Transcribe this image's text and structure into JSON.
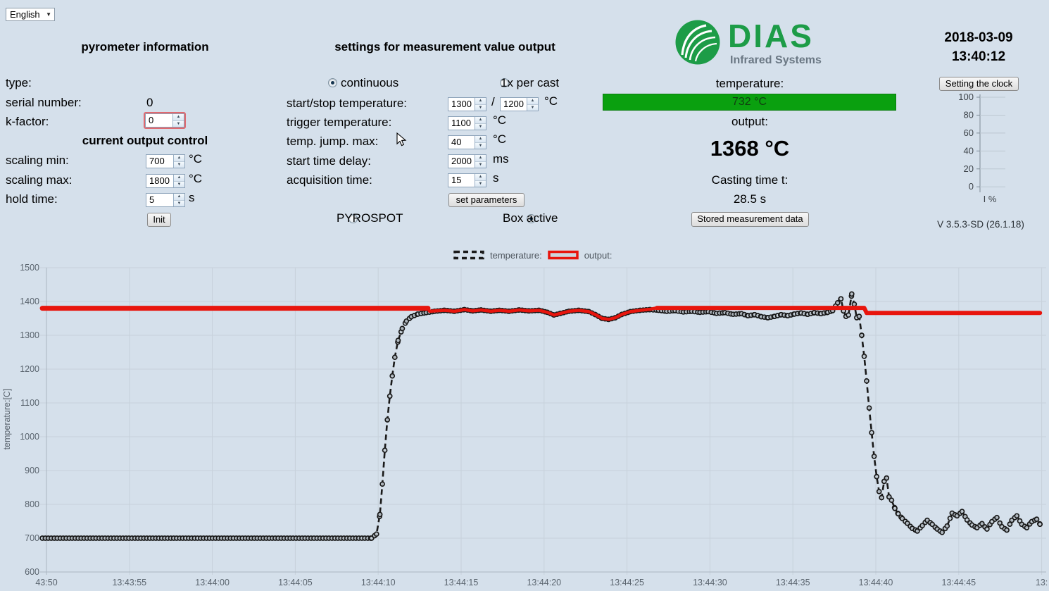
{
  "language_selector": {
    "value": "English"
  },
  "icons": {
    "dropdown_arrow": "▼",
    "spinner_up": "▲",
    "spinner_down": "▼"
  },
  "pyrometer_info": {
    "title": "pyrometer information",
    "type_label": "type:",
    "type_value": "",
    "serial_label": "serial number:",
    "serial_value": "0",
    "kfactor_label": "k-factor:",
    "kfactor_value": "0"
  },
  "output_control": {
    "title": "current output control",
    "scaling_min_label": "scaling min:",
    "scaling_min_value": "700",
    "scaling_min_unit": "°C",
    "scaling_max_label": "scaling max:",
    "scaling_max_value": "1800",
    "scaling_max_unit": "°C",
    "hold_time_label": "hold time:",
    "hold_time_value": "5",
    "hold_time_unit": "s",
    "init_button": "Init"
  },
  "settings": {
    "title": "settings for measurement value output",
    "continuous_label": "continuous",
    "continuous_selected": true,
    "per_cast_label": "1x per cast",
    "per_cast_selected": false,
    "start_stop_label": "start/stop temperature:",
    "start_temp_value": "1300",
    "slash": "/",
    "stop_temp_value": "1200",
    "start_stop_unit": "°C",
    "trigger_label": "trigger temperature:",
    "trigger_value": "1100",
    "trigger_unit": "°C",
    "jump_label": "temp. jump. max:",
    "jump_value": "40",
    "jump_unit": "°C",
    "delay_label": "start time delay:",
    "delay_value": "2000",
    "delay_unit": "ms",
    "acquisition_label": "acquisition time:",
    "acquisition_value": "15",
    "acquisition_unit": "s",
    "set_parameters_button": "set parameters",
    "pyrospot_label": "PYROSPOT",
    "pyrospot_selected": false,
    "box_active_label": "Box active",
    "box_active_selected": true
  },
  "measurement": {
    "brand": "DIAS",
    "brand_subtitle": "Infrared Systems",
    "temperature_label": "temperature:",
    "temperature_value": "732 °C",
    "temperature_bar_color": "#0aa00f",
    "output_label": "output:",
    "output_value": "1368 °C",
    "casting_time_label": "Casting time t:",
    "casting_time_value": "28.5 s",
    "stored_data_button": "Stored measurement data"
  },
  "clock": {
    "date": "2018-03-09",
    "time": "13:40:12",
    "set_clock_button": "Setting the clock",
    "version": "V 3.5.3-SD (26.1.18)"
  },
  "gauge": {
    "ticks": [
      100,
      80,
      60,
      40,
      20,
      0
    ],
    "unit_label": "I %"
  },
  "legend": {
    "temperature_label": "temperature:",
    "output_label": "output:"
  },
  "chart_data": {
    "type": "line",
    "ylabel": "temperature:[C]",
    "ylim": [
      600,
      1500
    ],
    "yticks": [
      600,
      700,
      800,
      900,
      1000,
      1100,
      1200,
      1300,
      1400,
      1500
    ],
    "x_axis_note": "t = seconds after 13:43:50",
    "xlim": [
      -0.3,
      60.3
    ],
    "grid": true,
    "legend_position": "top-center",
    "xticks": [
      {
        "t": 0,
        "label": "43:50"
      },
      {
        "t": 5,
        "label": "13:43:55"
      },
      {
        "t": 10,
        "label": "13:44:00"
      },
      {
        "t": 15,
        "label": "13:44:05"
      },
      {
        "t": 20,
        "label": "13:44:10"
      },
      {
        "t": 25,
        "label": "13:44:15"
      },
      {
        "t": 30,
        "label": "13:44:20"
      },
      {
        "t": 35,
        "label": "13:44:25"
      },
      {
        "t": 40,
        "label": "13:44:30"
      },
      {
        "t": 45,
        "label": "13:44:35"
      },
      {
        "t": 50,
        "label": "13:44:40"
      },
      {
        "t": 55,
        "label": "13:44:45"
      },
      {
        "t": 60,
        "label": "13:"
      }
    ],
    "series": [
      {
        "name": "temperature",
        "color": "#1a1a1a",
        "style": "dashed-line-with-circle-markers",
        "points": [
          [
            -0.25,
            700
          ],
          [
            19.6,
            700
          ],
          [
            19.9,
            712
          ],
          [
            20.1,
            770
          ],
          [
            20.25,
            860
          ],
          [
            20.4,
            960
          ],
          [
            20.55,
            1050
          ],
          [
            20.7,
            1120
          ],
          [
            20.85,
            1180
          ],
          [
            21.0,
            1235
          ],
          [
            21.2,
            1285
          ],
          [
            21.45,
            1320
          ],
          [
            21.7,
            1342
          ],
          [
            22.0,
            1355
          ],
          [
            22.4,
            1363
          ],
          [
            22.9,
            1367
          ],
          [
            23.4,
            1371
          ],
          [
            24.0,
            1374
          ],
          [
            24.6,
            1371
          ],
          [
            25.2,
            1376
          ],
          [
            25.7,
            1372
          ],
          [
            26.2,
            1375
          ],
          [
            26.8,
            1371
          ],
          [
            27.3,
            1374
          ],
          [
            27.9,
            1371
          ],
          [
            28.5,
            1375
          ],
          [
            29.1,
            1372
          ],
          [
            29.7,
            1374
          ],
          [
            30.2,
            1368
          ],
          [
            30.6,
            1360
          ],
          [
            31.0,
            1365
          ],
          [
            31.5,
            1371
          ],
          [
            32.1,
            1374
          ],
          [
            32.7,
            1370
          ],
          [
            33.1,
            1361
          ],
          [
            33.5,
            1350
          ],
          [
            33.9,
            1347
          ],
          [
            34.3,
            1352
          ],
          [
            34.7,
            1362
          ],
          [
            35.2,
            1370
          ],
          [
            35.8,
            1374
          ],
          [
            36.4,
            1376
          ],
          [
            36.9,
            1374
          ],
          [
            37.4,
            1371
          ],
          [
            37.9,
            1373
          ],
          [
            38.4,
            1369
          ],
          [
            38.9,
            1371
          ],
          [
            39.4,
            1368
          ],
          [
            39.9,
            1370
          ],
          [
            40.4,
            1365
          ],
          [
            40.9,
            1367
          ],
          [
            41.4,
            1362
          ],
          [
            41.9,
            1364
          ],
          [
            42.3,
            1358
          ],
          [
            42.7,
            1361
          ],
          [
            43.1,
            1355
          ],
          [
            43.5,
            1352
          ],
          [
            43.9,
            1356
          ],
          [
            44.3,
            1361
          ],
          [
            44.7,
            1358
          ],
          [
            45.1,
            1363
          ],
          [
            45.5,
            1366
          ],
          [
            45.9,
            1362
          ],
          [
            46.3,
            1367
          ],
          [
            46.7,
            1364
          ],
          [
            47.1,
            1368
          ],
          [
            47.4,
            1373
          ],
          [
            47.7,
            1396
          ],
          [
            47.9,
            1408
          ],
          [
            48.05,
            1372
          ],
          [
            48.2,
            1356
          ],
          [
            48.35,
            1360
          ],
          [
            48.55,
            1422
          ],
          [
            48.7,
            1392
          ],
          [
            48.85,
            1352
          ],
          [
            49.0,
            1356
          ],
          [
            49.15,
            1300
          ],
          [
            49.3,
            1238
          ],
          [
            49.45,
            1165
          ],
          [
            49.6,
            1085
          ],
          [
            49.75,
            1012
          ],
          [
            49.9,
            942
          ],
          [
            50.05,
            882
          ],
          [
            50.2,
            838
          ],
          [
            50.35,
            820
          ],
          [
            50.5,
            868
          ],
          [
            50.65,
            878
          ],
          [
            50.8,
            822
          ],
          [
            50.95,
            812
          ],
          [
            51.15,
            788
          ],
          [
            51.35,
            772
          ],
          [
            51.6,
            758
          ],
          [
            51.9,
            744
          ],
          [
            52.2,
            729
          ],
          [
            52.5,
            721
          ],
          [
            52.8,
            737
          ],
          [
            53.1,
            753
          ],
          [
            53.4,
            741
          ],
          [
            53.7,
            727
          ],
          [
            54.0,
            717
          ],
          [
            54.3,
            736
          ],
          [
            54.6,
            774
          ],
          [
            54.9,
            766
          ],
          [
            55.2,
            779
          ],
          [
            55.5,
            754
          ],
          [
            55.8,
            739
          ],
          [
            56.1,
            731
          ],
          [
            56.4,
            743
          ],
          [
            56.7,
            727
          ],
          [
            57.0,
            749
          ],
          [
            57.3,
            761
          ],
          [
            57.6,
            734
          ],
          [
            57.9,
            724
          ],
          [
            58.2,
            753
          ],
          [
            58.5,
            766
          ],
          [
            58.8,
            741
          ],
          [
            59.1,
            731
          ],
          [
            59.4,
            749
          ],
          [
            59.7,
            756
          ],
          [
            59.9,
            741
          ]
        ]
      },
      {
        "name": "output",
        "color": "#e8150d",
        "style": "thick-solid-line",
        "width_segments": [
          {
            "until": 23.0,
            "width": 7
          },
          {
            "until": 36.8,
            "width": 4.5
          },
          {
            "until": 60.5,
            "width": 6
          }
        ],
        "points": [
          [
            -0.25,
            1380
          ],
          [
            23.0,
            1380
          ],
          [
            23.1,
            1371
          ],
          [
            24.0,
            1374
          ],
          [
            24.6,
            1371
          ],
          [
            25.2,
            1376
          ],
          [
            25.7,
            1372
          ],
          [
            26.2,
            1375
          ],
          [
            26.8,
            1371
          ],
          [
            27.3,
            1374
          ],
          [
            27.9,
            1371
          ],
          [
            28.5,
            1375
          ],
          [
            29.1,
            1372
          ],
          [
            29.7,
            1374
          ],
          [
            30.2,
            1368
          ],
          [
            30.6,
            1360
          ],
          [
            31.0,
            1365
          ],
          [
            31.5,
            1371
          ],
          [
            32.1,
            1374
          ],
          [
            32.7,
            1370
          ],
          [
            33.1,
            1361
          ],
          [
            33.5,
            1350
          ],
          [
            33.9,
            1347
          ],
          [
            34.3,
            1352
          ],
          [
            34.7,
            1362
          ],
          [
            35.2,
            1370
          ],
          [
            35.8,
            1374
          ],
          [
            36.4,
            1377
          ],
          [
            36.8,
            1381
          ],
          [
            49.3,
            1381
          ],
          [
            49.45,
            1366
          ],
          [
            59.9,
            1366
          ]
        ]
      }
    ]
  }
}
